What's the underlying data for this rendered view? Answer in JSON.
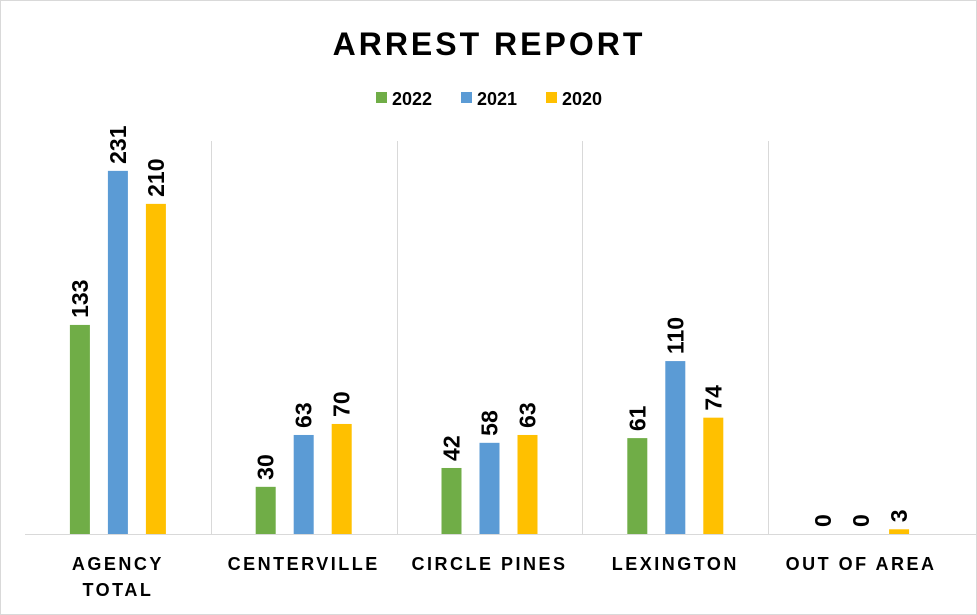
{
  "chart_data": {
    "type": "bar",
    "title": "ARREST REPORT",
    "categories": [
      [
        "AGENCY",
        "TOTAL"
      ],
      [
        "CENTERVILLE"
      ],
      [
        "CIRCLE PINES"
      ],
      [
        "LEXINGTON"
      ],
      [
        "OUT OF AREA"
      ]
    ],
    "series": [
      {
        "name": "2022",
        "color": "#70ad47",
        "values": [
          133,
          30,
          42,
          61,
          0
        ]
      },
      {
        "name": "2021",
        "color": "#5b9bd5",
        "values": [
          231,
          63,
          58,
          110,
          0
        ]
      },
      {
        "name": "2020",
        "color": "#ffc000",
        "values": [
          210,
          70,
          63,
          74,
          3
        ]
      }
    ],
    "ylim": [
      0,
      250
    ],
    "legend_position": "top-center",
    "vertical_category_separators": true,
    "data_labels": "rotated-vertical"
  }
}
